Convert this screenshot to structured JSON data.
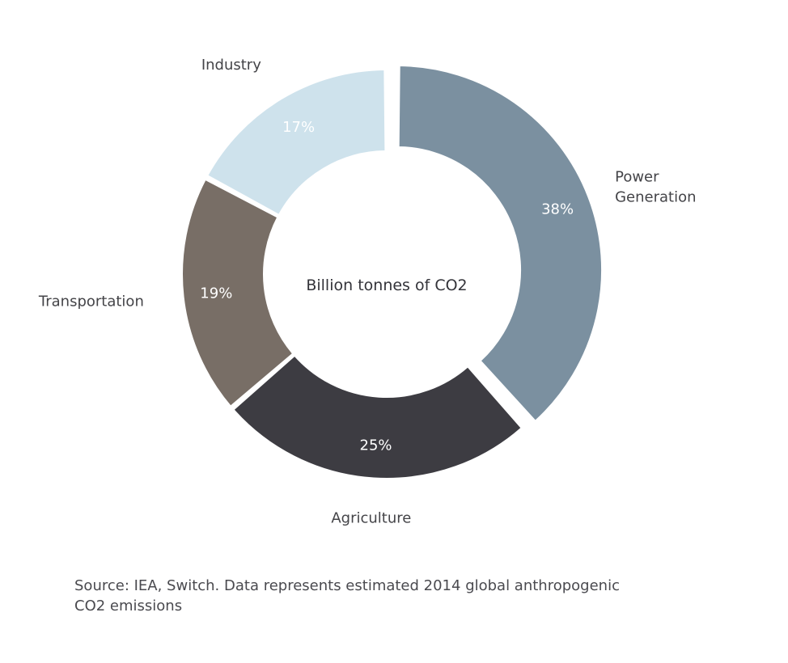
{
  "chart_data": {
    "type": "pie",
    "variant": "donut",
    "center_label": "Billion tonnes of CO2",
    "slices": [
      {
        "label_lines": [
          "Power",
          "Generation"
        ],
        "value": 38,
        "value_label": "38%",
        "color": "#7b90a0",
        "exploded": true
      },
      {
        "label_lines": [
          "Agriculture"
        ],
        "value": 25,
        "value_label": "25%",
        "color": "#3d3c42",
        "exploded": false
      },
      {
        "label_lines": [
          "Transportation"
        ],
        "value": 19,
        "value_label": "19%",
        "color": "#786e66",
        "exploded": false
      },
      {
        "label_lines": [
          "Industry"
        ],
        "value": 17,
        "value_label": "17%",
        "color": "#cee2ec",
        "exploded": false
      }
    ],
    "legend": "none"
  },
  "source_note": "Source: IEA, Switch. Data represents estimated 2014 global anthropogenic CO2 emissions"
}
